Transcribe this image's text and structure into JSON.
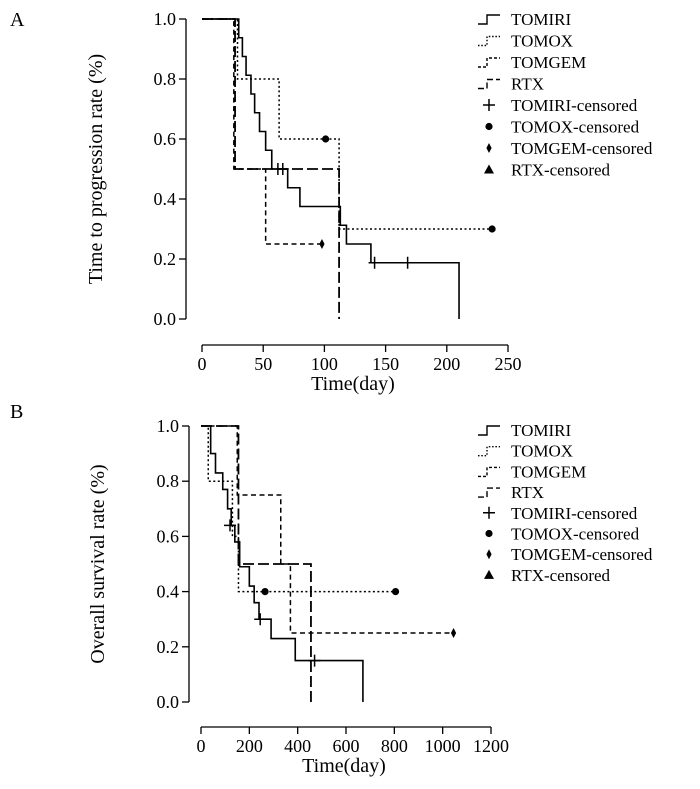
{
  "chart_data": [
    {
      "panel": "A",
      "type": "line",
      "subtype": "kaplan-meier",
      "xlabel": "Time(day)",
      "ylabel": "Time to progression rate (%)",
      "xlim": [
        0,
        250
      ],
      "ylim": [
        0,
        1
      ],
      "xticks": [
        "0",
        "50",
        "100",
        "150",
        "200",
        "250"
      ],
      "yticks": [
        "0.0",
        "0.2",
        "0.4",
        "0.6",
        "0.8",
        "1.0"
      ],
      "legend_position": "top-right",
      "series": [
        {
          "name": "TOMIRI",
          "style": "solid",
          "steps": [
            [
              0,
              1.0
            ],
            [
              30,
              0.9375
            ],
            [
              33,
              0.875
            ],
            [
              36,
              0.8125
            ],
            [
              40,
              0.75
            ],
            [
              43,
              0.6875
            ],
            [
              47,
              0.625
            ],
            [
              52,
              0.5625
            ],
            [
              57,
              0.5
            ],
            [
              70,
              0.4375
            ],
            [
              80,
              0.375
            ],
            [
              113,
              0.3125
            ],
            [
              118,
              0.25
            ],
            [
              138,
              0.1875
            ],
            [
              210,
              0.0
            ]
          ],
          "censored": [
            [
              62,
              0.5
            ],
            [
              66,
              0.5
            ],
            [
              141,
              0.1875
            ],
            [
              168,
              0.1875
            ]
          ]
        },
        {
          "name": "TOMOX",
          "style": "dotted",
          "steps": [
            [
              0,
              1.0
            ],
            [
              29,
              0.8
            ],
            [
              63,
              0.6
            ],
            [
              112,
              0.3
            ]
          ],
          "censored": [
            [
              101,
              0.6
            ],
            [
              237,
              0.3
            ]
          ]
        },
        {
          "name": "TOMGEM",
          "style": "short-dash",
          "steps": [
            [
              0,
              1.0
            ],
            [
              26,
              0.5
            ],
            [
              52,
              0.25
            ]
          ],
          "censored": [
            [
              98,
              0.25
            ]
          ]
        },
        {
          "name": "RTX",
          "style": "long-dash",
          "steps": [
            [
              0,
              1.0
            ],
            [
              27,
              0.5
            ],
            [
              112,
              0.0
            ]
          ],
          "censored": []
        }
      ],
      "legend": [
        "TOMIRI",
        "TOMOX",
        "TOMGEM",
        "RTX",
        "TOMIRI-censored",
        "TOMOX-censored",
        "TOMGEM-censored",
        "RTX-censored"
      ]
    },
    {
      "panel": "B",
      "type": "line",
      "subtype": "kaplan-meier",
      "xlabel": "Time(day)",
      "ylabel": "Overall survival rate (%)",
      "xlim": [
        0,
        1200
      ],
      "ylim": [
        0,
        1
      ],
      "xticks": [
        "0",
        "200",
        "400",
        "600",
        "800",
        "1000",
        "1200"
      ],
      "yticks": [
        "0.0",
        "0.2",
        "0.4",
        "0.6",
        "0.8",
        "1.0"
      ],
      "legend_position": "top-right",
      "series": [
        {
          "name": "TOMIRI",
          "style": "solid",
          "steps": [
            [
              0,
              1.0
            ],
            [
              40,
              0.9
            ],
            [
              60,
              0.83
            ],
            [
              90,
              0.77
            ],
            [
              110,
              0.7
            ],
            [
              125,
              0.64
            ],
            [
              140,
              0.58
            ],
            [
              160,
              0.49
            ],
            [
              200,
              0.42
            ],
            [
              220,
              0.36
            ],
            [
              240,
              0.3
            ],
            [
              290,
              0.23
            ],
            [
              390,
              0.15
            ],
            [
              670,
              0.0
            ]
          ],
          "censored": [
            [
              120,
              0.64
            ],
            [
              245,
              0.3
            ],
            [
              470,
              0.15
            ]
          ]
        },
        {
          "name": "TOMOX",
          "style": "dotted",
          "steps": [
            [
              0,
              1.0
            ],
            [
              30,
              0.8
            ],
            [
              130,
              0.6
            ],
            [
              155,
              0.4
            ]
          ],
          "censored": [
            [
              265,
              0.4
            ],
            [
              805,
              0.4
            ]
          ]
        },
        {
          "name": "TOMGEM",
          "style": "short-dash",
          "steps": [
            [
              0,
              1.0
            ],
            [
              150,
              0.75
            ],
            [
              330,
              0.5
            ],
            [
              370,
              0.25
            ]
          ],
          "censored": [
            [
              1045,
              0.25
            ]
          ]
        },
        {
          "name": "RTX",
          "style": "long-dash",
          "steps": [
            [
              0,
              1.0
            ],
            [
              155,
              0.5
            ],
            [
              455,
              0.0
            ]
          ],
          "censored": []
        }
      ],
      "legend": [
        "TOMIRI",
        "TOMOX",
        "TOMGEM",
        "RTX",
        "TOMIRI-censored",
        "TOMOX-censored",
        "TOMGEM-censored",
        "RTX-censored"
      ]
    }
  ]
}
